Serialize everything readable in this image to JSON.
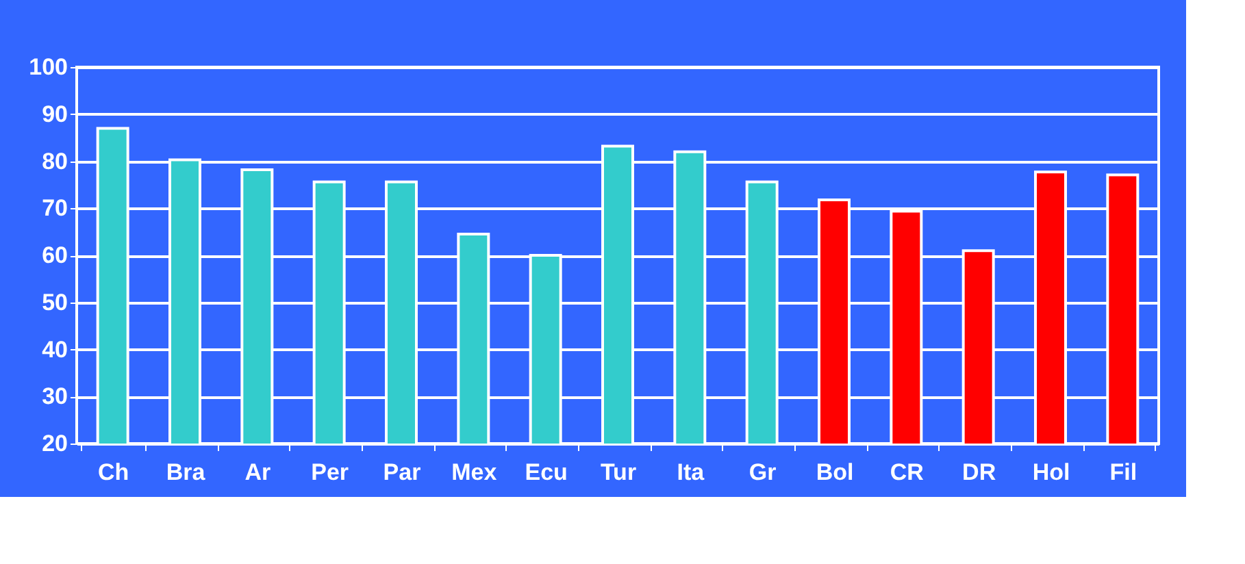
{
  "chart_data": {
    "type": "bar",
    "categories": [
      "Ch",
      "Bra",
      "Ar",
      "Per",
      "Par",
      "Mex",
      "Ecu",
      "Tur",
      "Ita",
      "Gr",
      "Bol",
      "CR",
      "DR",
      "Hol",
      "Fil"
    ],
    "values": [
      87,
      80.3,
      78.2,
      75.6,
      75.6,
      64.5,
      60,
      83.2,
      82,
      75.6,
      71.8,
      69.4,
      61,
      77.7,
      77.1
    ],
    "colors": [
      "#33cccc",
      "#33cccc",
      "#33cccc",
      "#33cccc",
      "#33cccc",
      "#33cccc",
      "#33cccc",
      "#33cccc",
      "#33cccc",
      "#33cccc",
      "#ff0000",
      "#ff0000",
      "#ff0000",
      "#ff0000",
      "#ff0000"
    ],
    "ylim": [
      20,
      100
    ],
    "yticks": [
      20,
      30,
      40,
      50,
      60,
      70,
      80,
      90,
      100
    ],
    "grid": "y"
  }
}
